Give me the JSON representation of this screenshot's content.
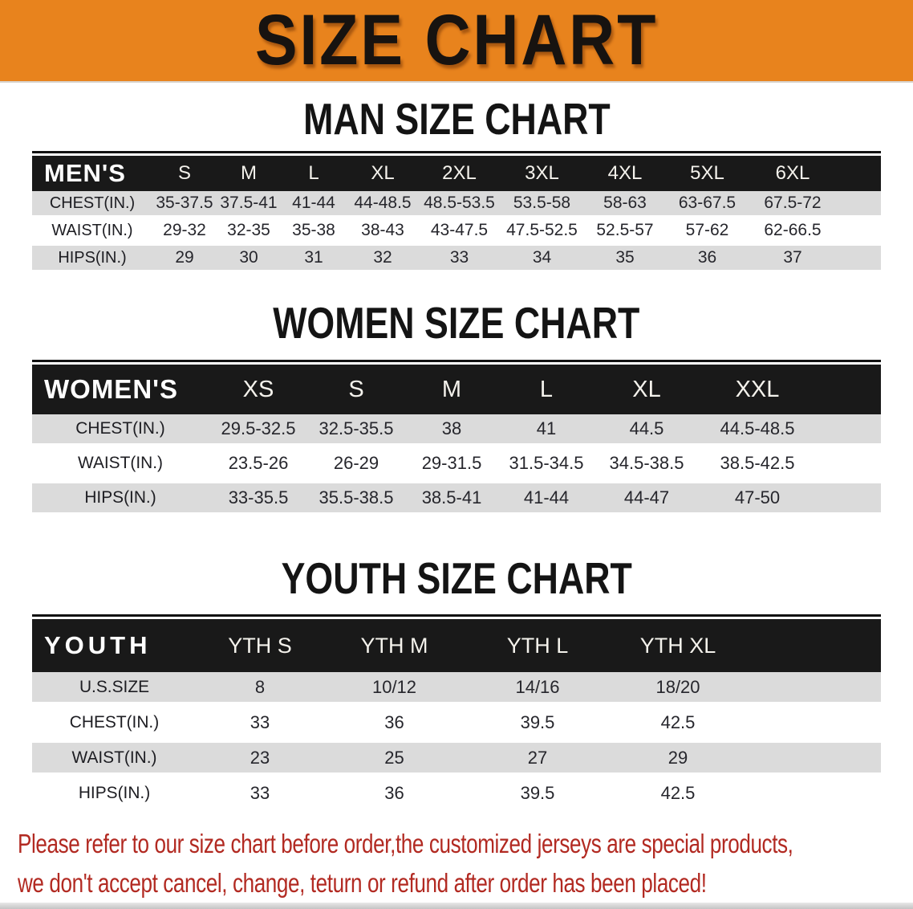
{
  "banner": {
    "title": "SIZE CHART",
    "bg_color": "#E8831D",
    "text_color": "#171310"
  },
  "sections": [
    {
      "heading": "MAN SIZE CHART",
      "table": {
        "header_label": "MEN'S",
        "columns": [
          "S",
          "M",
          "L",
          "XL",
          "2XL",
          "3XL",
          "4XL",
          "5XL",
          "6XL"
        ],
        "rows": [
          {
            "label": "CHEST(IN.)",
            "values": [
              "35-37.5",
              "37.5-41",
              "41-44",
              "44-48.5",
              "48.5-53.5",
              "53.5-58",
              "58-63",
              "63-67.5",
              "67.5-72"
            ]
          },
          {
            "label": "WAIST(IN.)",
            "values": [
              "29-32",
              "32-35",
              "35-38",
              "38-43",
              "43-47.5",
              "47.5-52.5",
              "52.5-57",
              "57-62",
              "62-66.5"
            ]
          },
          {
            "label": "HIPS(IN.)",
            "values": [
              "29",
              "30",
              "31",
              "32",
              "33",
              "34",
              "35",
              "36",
              "37"
            ]
          }
        ]
      }
    },
    {
      "heading": "WOMEN SIZE CHART",
      "table": {
        "header_label": "WOMEN'S",
        "columns": [
          "XS",
          "S",
          "M",
          "L",
          "XL",
          "XXL"
        ],
        "rows": [
          {
            "label": "CHEST(IN.)",
            "values": [
              "29.5-32.5",
              "32.5-35.5",
              "38",
              "41",
              "44.5",
              "44.5-48.5"
            ]
          },
          {
            "label": "WAIST(IN.)",
            "values": [
              "23.5-26",
              "26-29",
              "29-31.5",
              "31.5-34.5",
              "34.5-38.5",
              "38.5-42.5"
            ]
          },
          {
            "label": "HIPS(IN.)",
            "values": [
              "33-35.5",
              "35.5-38.5",
              "38.5-41",
              "41-44",
              "44-47",
              "47-50"
            ]
          }
        ]
      }
    },
    {
      "heading": "YOUTH SIZE CHART",
      "table": {
        "header_label": "YOUTH",
        "columns": [
          "YTH S",
          "YTH M",
          "YTH L",
          "YTH XL"
        ],
        "rows": [
          {
            "label": "U.S.SIZE",
            "values": [
              "8",
              "10/12",
              "14/16",
              "18/20"
            ]
          },
          {
            "label": "CHEST(IN.)",
            "values": [
              "33",
              "36",
              "39.5",
              "42.5"
            ]
          },
          {
            "label": "WAIST(IN.)",
            "values": [
              "23",
              "25",
              "27",
              "29"
            ]
          },
          {
            "label": "HIPS(IN.)",
            "values": [
              "33",
              "36",
              "39.5",
              "42.5"
            ]
          }
        ]
      }
    }
  ],
  "notice": {
    "lines": [
      "Please refer to our size chart before order,the customized jerseys are special products,",
      "we don't accept cancel, change, teturn or refund after order has been placed!"
    ],
    "color": "#B22A22"
  },
  "colors": {
    "banner_orange": "#E8831D",
    "header_bar_black": "#191919",
    "stripe_gray": "#DBDBDB",
    "cell_text": "#26262c",
    "notice_red": "#B22A22"
  }
}
